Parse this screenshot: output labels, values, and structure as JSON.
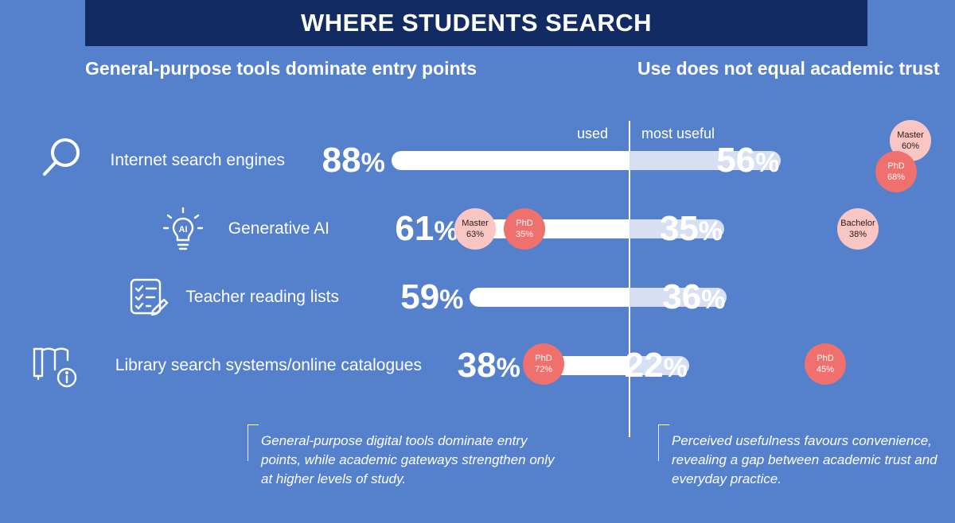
{
  "header": {
    "title": "WHERE STUDENTS SEARCH",
    "left_subtitle": "General-purpose tools dominate entry points",
    "right_subtitle": "Use does not equal academic trust"
  },
  "columns": {
    "left": "used",
    "right": "most useful"
  },
  "colors": {
    "background": "#5580cc",
    "banner": "#132b63",
    "bar_used": "#ffffff",
    "bar_useful": "#d7e0f2",
    "bubble_light": "#f9c6c3",
    "bubble_strong": "#f0706e"
  },
  "chart_data": {
    "type": "bar",
    "title": "WHERE STUDENTS SEARCH",
    "categories": [
      "Internet search engines",
      "Generative AI",
      "Teacher reading lists",
      "Library search systems/online catalogues"
    ],
    "icons": [
      "magnifier-icon",
      "ai-lightbulb-icon",
      "checklist-icon",
      "library-book-info-icon"
    ],
    "unit": "%",
    "series": [
      {
        "name": "used",
        "values": [
          88,
          61,
          59,
          38
        ]
      },
      {
        "name": "most useful",
        "values": [
          56,
          35,
          36,
          22
        ]
      }
    ],
    "callouts": [
      {
        "series": "used",
        "category": "Generative AI",
        "group": "Master",
        "value": "63%",
        "style": "light"
      },
      {
        "series": "used",
        "category": "Generative AI",
        "group": "PhD",
        "value": "35%",
        "style": "strong"
      },
      {
        "series": "used",
        "category": "Library search systems/online catalogues",
        "group": "PhD",
        "value": "72%",
        "style": "strong"
      },
      {
        "series": "most useful",
        "category": "Internet search engines",
        "group": "Master",
        "value": "60%",
        "style": "light"
      },
      {
        "series": "most useful",
        "category": "Internet search engines",
        "group": "PhD",
        "value": "68%",
        "style": "strong"
      },
      {
        "series": "most useful",
        "category": "Generative AI",
        "group": "Bachelor",
        "value": "38%",
        "style": "light"
      },
      {
        "series": "most useful",
        "category": "Library search systems/online catalogues",
        "group": "PhD",
        "value": "45%",
        "style": "strong"
      }
    ],
    "legend": "none",
    "grid": false
  },
  "notes": {
    "left": "General-purpose digital tools dominate entry points, while academic gateways strengthen only at higher levels of study.",
    "right": "Perceived usefulness favours convenience, revealing a gap between academic trust and everyday practice."
  }
}
